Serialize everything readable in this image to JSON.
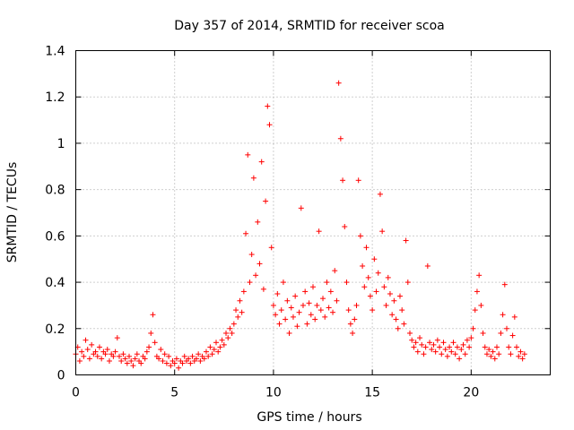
{
  "chart_data": {
    "type": "scatter",
    "title": "Day 357 of 2014, SRMTID for receiver scoa",
    "xlabel": "GPS time / hours",
    "ylabel": "SRMTID / TECUs",
    "xlim": [
      0,
      24
    ],
    "ylim": [
      0,
      1.4
    ],
    "xticks": [
      0,
      5,
      10,
      15,
      20
    ],
    "xtick_labels": [
      "0",
      "5",
      "10",
      "15",
      "20"
    ],
    "yticks": [
      0,
      0.2,
      0.4,
      0.6,
      0.8,
      1.0,
      1.2,
      1.4
    ],
    "ytick_labels": [
      "0",
      "0.2",
      "0.4",
      "0.6",
      "0.8",
      "1",
      "1.2",
      "1.4"
    ],
    "grid": true,
    "marker": "+",
    "marker_color": "#ff0000",
    "series": [
      {
        "name": "SRMTID",
        "points": [
          [
            0.0,
            0.09
          ],
          [
            0.1,
            0.12
          ],
          [
            0.2,
            0.06
          ],
          [
            0.3,
            0.1
          ],
          [
            0.4,
            0.08
          ],
          [
            0.5,
            0.15
          ],
          [
            0.6,
            0.11
          ],
          [
            0.7,
            0.07
          ],
          [
            0.8,
            0.13
          ],
          [
            0.9,
            0.09
          ],
          [
            1.0,
            0.1
          ],
          [
            1.1,
            0.08
          ],
          [
            1.2,
            0.12
          ],
          [
            1.3,
            0.07
          ],
          [
            1.4,
            0.1
          ],
          [
            1.5,
            0.09
          ],
          [
            1.6,
            0.11
          ],
          [
            1.7,
            0.06
          ],
          [
            1.8,
            0.09
          ],
          [
            1.9,
            0.08
          ],
          [
            2.0,
            0.1
          ],
          [
            2.1,
            0.16
          ],
          [
            2.2,
            0.08
          ],
          [
            2.3,
            0.06
          ],
          [
            2.4,
            0.09
          ],
          [
            2.5,
            0.07
          ],
          [
            2.6,
            0.05
          ],
          [
            2.7,
            0.08
          ],
          [
            2.8,
            0.06
          ],
          [
            2.9,
            0.04
          ],
          [
            3.0,
            0.07
          ],
          [
            3.1,
            0.09
          ],
          [
            3.2,
            0.06
          ],
          [
            3.3,
            0.05
          ],
          [
            3.4,
            0.08
          ],
          [
            3.5,
            0.07
          ],
          [
            3.6,
            0.1
          ],
          [
            3.7,
            0.12
          ],
          [
            3.8,
            0.18
          ],
          [
            3.9,
            0.26
          ],
          [
            4.0,
            0.14
          ],
          [
            4.1,
            0.08
          ],
          [
            4.2,
            0.07
          ],
          [
            4.3,
            0.11
          ],
          [
            4.4,
            0.06
          ],
          [
            4.5,
            0.09
          ],
          [
            4.6,
            0.05
          ],
          [
            4.7,
            0.08
          ],
          [
            4.8,
            0.04
          ],
          [
            4.9,
            0.06
          ],
          [
            5.0,
            0.05
          ],
          [
            5.1,
            0.07
          ],
          [
            5.2,
            0.03
          ],
          [
            5.3,
            0.06
          ],
          [
            5.4,
            0.05
          ],
          [
            5.5,
            0.08
          ],
          [
            5.6,
            0.06
          ],
          [
            5.7,
            0.07
          ],
          [
            5.8,
            0.05
          ],
          [
            5.9,
            0.08
          ],
          [
            6.0,
            0.06
          ],
          [
            6.1,
            0.07
          ],
          [
            6.2,
            0.09
          ],
          [
            6.3,
            0.06
          ],
          [
            6.4,
            0.08
          ],
          [
            6.5,
            0.07
          ],
          [
            6.6,
            0.1
          ],
          [
            6.7,
            0.08
          ],
          [
            6.8,
            0.12
          ],
          [
            6.9,
            0.09
          ],
          [
            7.0,
            0.11
          ],
          [
            7.1,
            0.14
          ],
          [
            7.2,
            0.1
          ],
          [
            7.3,
            0.12
          ],
          [
            7.4,
            0.15
          ],
          [
            7.5,
            0.13
          ],
          [
            7.6,
            0.18
          ],
          [
            7.7,
            0.16
          ],
          [
            7.8,
            0.2
          ],
          [
            7.9,
            0.18
          ],
          [
            8.0,
            0.22
          ],
          [
            8.1,
            0.28
          ],
          [
            8.2,
            0.25
          ],
          [
            8.3,
            0.32
          ],
          [
            8.4,
            0.27
          ],
          [
            8.5,
            0.36
          ],
          [
            8.6,
            0.61
          ],
          [
            8.7,
            0.95
          ],
          [
            8.8,
            0.4
          ],
          [
            8.9,
            0.52
          ],
          [
            9.0,
            0.85
          ],
          [
            9.1,
            0.43
          ],
          [
            9.2,
            0.66
          ],
          [
            9.3,
            0.48
          ],
          [
            9.4,
            0.92
          ],
          [
            9.5,
            0.37
          ],
          [
            9.6,
            0.75
          ],
          [
            9.7,
            1.16
          ],
          [
            9.8,
            1.08
          ],
          [
            9.9,
            0.55
          ],
          [
            10.0,
            0.3
          ],
          [
            10.1,
            0.26
          ],
          [
            10.2,
            0.35
          ],
          [
            10.3,
            0.22
          ],
          [
            10.4,
            0.28
          ],
          [
            10.5,
            0.4
          ],
          [
            10.6,
            0.24
          ],
          [
            10.7,
            0.32
          ],
          [
            10.8,
            0.18
          ],
          [
            10.9,
            0.29
          ],
          [
            11.0,
            0.25
          ],
          [
            11.1,
            0.34
          ],
          [
            11.2,
            0.21
          ],
          [
            11.3,
            0.27
          ],
          [
            11.4,
            0.72
          ],
          [
            11.5,
            0.3
          ],
          [
            11.6,
            0.36
          ],
          [
            11.7,
            0.22
          ],
          [
            11.8,
            0.31
          ],
          [
            11.9,
            0.26
          ],
          [
            12.0,
            0.38
          ],
          [
            12.1,
            0.24
          ],
          [
            12.2,
            0.3
          ],
          [
            12.3,
            0.62
          ],
          [
            12.4,
            0.28
          ],
          [
            12.5,
            0.33
          ],
          [
            12.6,
            0.25
          ],
          [
            12.7,
            0.4
          ],
          [
            12.8,
            0.29
          ],
          [
            12.9,
            0.36
          ],
          [
            13.0,
            0.27
          ],
          [
            13.1,
            0.45
          ],
          [
            13.2,
            0.32
          ],
          [
            13.3,
            1.26
          ],
          [
            13.4,
            1.02
          ],
          [
            13.5,
            0.84
          ],
          [
            13.6,
            0.64
          ],
          [
            13.7,
            0.4
          ],
          [
            13.8,
            0.28
          ],
          [
            13.9,
            0.22
          ],
          [
            14.0,
            0.18
          ],
          [
            14.1,
            0.24
          ],
          [
            14.2,
            0.3
          ],
          [
            14.3,
            0.84
          ],
          [
            14.4,
            0.6
          ],
          [
            14.5,
            0.47
          ],
          [
            14.6,
            0.38
          ],
          [
            14.7,
            0.55
          ],
          [
            14.8,
            0.42
          ],
          [
            14.9,
            0.34
          ],
          [
            15.0,
            0.28
          ],
          [
            15.1,
            0.5
          ],
          [
            15.2,
            0.36
          ],
          [
            15.3,
            0.44
          ],
          [
            15.4,
            0.78
          ],
          [
            15.5,
            0.62
          ],
          [
            15.6,
            0.38
          ],
          [
            15.7,
            0.3
          ],
          [
            15.8,
            0.42
          ],
          [
            15.9,
            0.35
          ],
          [
            16.0,
            0.26
          ],
          [
            16.1,
            0.32
          ],
          [
            16.2,
            0.24
          ],
          [
            16.3,
            0.2
          ],
          [
            16.4,
            0.34
          ],
          [
            16.5,
            0.28
          ],
          [
            16.6,
            0.22
          ],
          [
            16.7,
            0.58
          ],
          [
            16.8,
            0.4
          ],
          [
            16.9,
            0.18
          ],
          [
            17.0,
            0.15
          ],
          [
            17.1,
            0.12
          ],
          [
            17.2,
            0.14
          ],
          [
            17.3,
            0.1
          ],
          [
            17.4,
            0.16
          ],
          [
            17.5,
            0.13
          ],
          [
            17.6,
            0.09
          ],
          [
            17.7,
            0.12
          ],
          [
            17.8,
            0.47
          ],
          [
            17.9,
            0.14
          ],
          [
            18.0,
            0.11
          ],
          [
            18.1,
            0.13
          ],
          [
            18.2,
            0.1
          ],
          [
            18.3,
            0.15
          ],
          [
            18.4,
            0.12
          ],
          [
            18.5,
            0.09
          ],
          [
            18.6,
            0.14
          ],
          [
            18.7,
            0.11
          ],
          [
            18.8,
            0.08
          ],
          [
            18.9,
            0.12
          ],
          [
            19.0,
            0.1
          ],
          [
            19.1,
            0.14
          ],
          [
            19.2,
            0.09
          ],
          [
            19.3,
            0.12
          ],
          [
            19.4,
            0.07
          ],
          [
            19.5,
            0.11
          ],
          [
            19.6,
            0.13
          ],
          [
            19.7,
            0.09
          ],
          [
            19.8,
            0.15
          ],
          [
            19.9,
            0.12
          ],
          [
            20.0,
            0.16
          ],
          [
            20.1,
            0.2
          ],
          [
            20.2,
            0.28
          ],
          [
            20.3,
            0.36
          ],
          [
            20.4,
            0.43
          ],
          [
            20.5,
            0.3
          ],
          [
            20.6,
            0.18
          ],
          [
            20.7,
            0.12
          ],
          [
            20.8,
            0.09
          ],
          [
            20.9,
            0.11
          ],
          [
            21.0,
            0.08
          ],
          [
            21.1,
            0.1
          ],
          [
            21.2,
            0.07
          ],
          [
            21.3,
            0.12
          ],
          [
            21.4,
            0.09
          ],
          [
            21.5,
            0.18
          ],
          [
            21.6,
            0.26
          ],
          [
            21.7,
            0.39
          ],
          [
            21.8,
            0.2
          ],
          [
            21.9,
            0.12
          ],
          [
            22.0,
            0.09
          ],
          [
            22.1,
            0.17
          ],
          [
            22.2,
            0.25
          ],
          [
            22.3,
            0.12
          ],
          [
            22.4,
            0.08
          ],
          [
            22.5,
            0.1
          ],
          [
            22.6,
            0.07
          ],
          [
            22.7,
            0.09
          ]
        ]
      }
    ]
  }
}
